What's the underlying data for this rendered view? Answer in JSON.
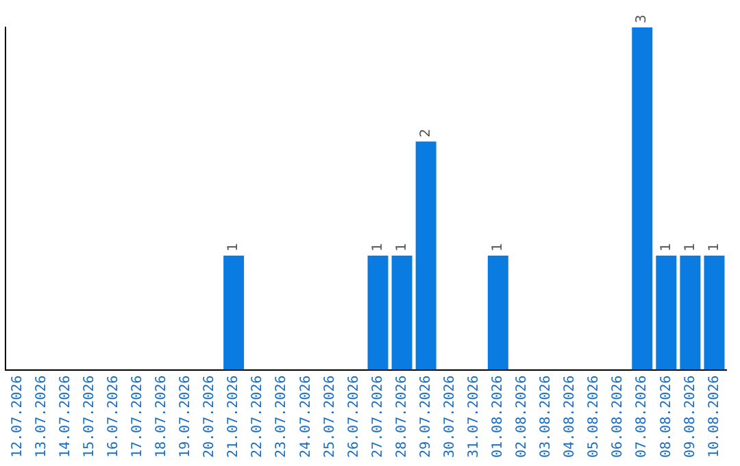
{
  "chart_data": {
    "type": "bar",
    "categories": [
      "12.07.2026",
      "13.07.2026",
      "14.07.2026",
      "15.07.2026",
      "16.07.2026",
      "17.07.2026",
      "18.07.2026",
      "19.07.2026",
      "20.07.2026",
      "21.07.2026",
      "22.07.2026",
      "23.07.2026",
      "24.07.2026",
      "25.07.2026",
      "26.07.2026",
      "27.07.2026",
      "28.07.2026",
      "29.07.2026",
      "30.07.2026",
      "31.07.2026",
      "01.08.2026",
      "02.08.2026",
      "03.08.2026",
      "04.08.2026",
      "05.08.2026",
      "06.08.2026",
      "07.08.2026",
      "08.08.2026",
      "09.08.2026",
      "10.08.2026"
    ],
    "values": [
      0,
      0,
      0,
      0,
      0,
      0,
      0,
      0,
      0,
      1,
      0,
      0,
      0,
      0,
      0,
      1,
      1,
      2,
      0,
      0,
      1,
      0,
      0,
      0,
      0,
      0,
      3,
      1,
      1,
      1
    ],
    "value_labels": [
      null,
      null,
      null,
      null,
      null,
      null,
      null,
      null,
      null,
      "1",
      null,
      null,
      null,
      null,
      null,
      "1",
      "1",
      "2",
      null,
      null,
      "1",
      null,
      null,
      null,
      null,
      null,
      "3",
      "1",
      "1",
      "1"
    ],
    "color": "#0a7be0",
    "grid": false,
    "legend": false,
    "tick_labels": "x"
  }
}
